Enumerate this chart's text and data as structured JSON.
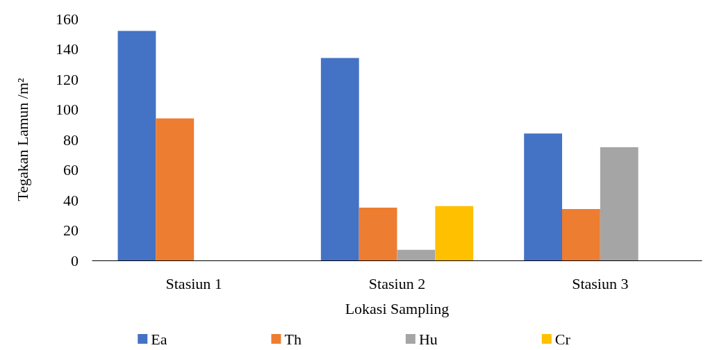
{
  "chart_data": {
    "type": "bar",
    "xlabel": "Lokasi Sampling",
    "ylabel": "Tegakan Lamun /m²",
    "categories": [
      "Stasiun 1",
      "Stasiun 2",
      "Stasiun 3"
    ],
    "series": [
      {
        "name": "Ea",
        "color": "#4472c4",
        "values": [
          152,
          134,
          84
        ]
      },
      {
        "name": "Th",
        "color": "#ed7d31",
        "values": [
          94,
          35,
          34
        ]
      },
      {
        "name": "Hu",
        "color": "#a5a5a5",
        "values": [
          0,
          7,
          75
        ]
      },
      {
        "name": "Cr",
        "color": "#ffc000",
        "values": [
          0,
          36,
          0
        ]
      }
    ],
    "ylim": [
      0,
      160
    ],
    "yticks": [
      0,
      20,
      40,
      60,
      80,
      100,
      120,
      140,
      160
    ],
    "grid": false,
    "legend": "bottom"
  }
}
